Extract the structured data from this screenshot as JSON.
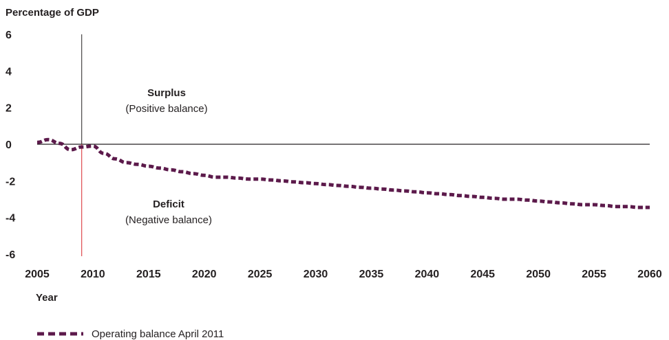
{
  "chart_data": {
    "type": "line",
    "ylabel": "Percentage of GDP",
    "xlabel": "Year",
    "xlim": [
      2005,
      2060
    ],
    "ylim": [
      -6,
      6
    ],
    "x_ticks": [
      2005,
      2010,
      2015,
      2020,
      2025,
      2030,
      2035,
      2040,
      2045,
      2050,
      2055,
      2060
    ],
    "y_ticks": [
      6,
      4,
      2,
      0,
      -2,
      -4,
      -6
    ],
    "reference_year": 2009,
    "annotations": [
      {
        "title": "Surplus",
        "subtitle": "(Positive balance)"
      },
      {
        "title": "Deficit",
        "subtitle": "(Negative balance)"
      }
    ],
    "series": [
      {
        "name": "Operating balance April 2011",
        "color": "#5c1a4b",
        "style": "dashed",
        "x": [
          2005,
          2006,
          2007,
          2008,
          2009,
          2010,
          2011,
          2012,
          2013,
          2014,
          2015,
          2016,
          2017,
          2018,
          2019,
          2020,
          2021,
          2022,
          2023,
          2024,
          2025,
          2026,
          2027,
          2028,
          2029,
          2030,
          2031,
          2032,
          2033,
          2034,
          2035,
          2036,
          2037,
          2038,
          2039,
          2040,
          2041,
          2042,
          2043,
          2044,
          2045,
          2046,
          2047,
          2048,
          2049,
          2050,
          2051,
          2052,
          2053,
          2054,
          2055,
          2056,
          2057,
          2058,
          2059,
          2060
        ],
        "values": [
          0.1,
          0.25,
          0.05,
          -0.3,
          -0.15,
          -0.1,
          -0.5,
          -0.8,
          -1.0,
          -1.1,
          -1.2,
          -1.3,
          -1.4,
          -1.5,
          -1.6,
          -1.7,
          -1.8,
          -1.8,
          -1.85,
          -1.9,
          -1.9,
          -1.95,
          -2.0,
          -2.05,
          -2.1,
          -2.15,
          -2.2,
          -2.25,
          -2.3,
          -2.35,
          -2.4,
          -2.45,
          -2.5,
          -2.55,
          -2.6,
          -2.65,
          -2.7,
          -2.75,
          -2.8,
          -2.85,
          -2.9,
          -2.95,
          -3.0,
          -3.0,
          -3.05,
          -3.1,
          -3.15,
          -3.2,
          -3.25,
          -3.3,
          -3.3,
          -3.35,
          -3.4,
          -3.4,
          -3.45,
          -3.45
        ]
      }
    ]
  }
}
